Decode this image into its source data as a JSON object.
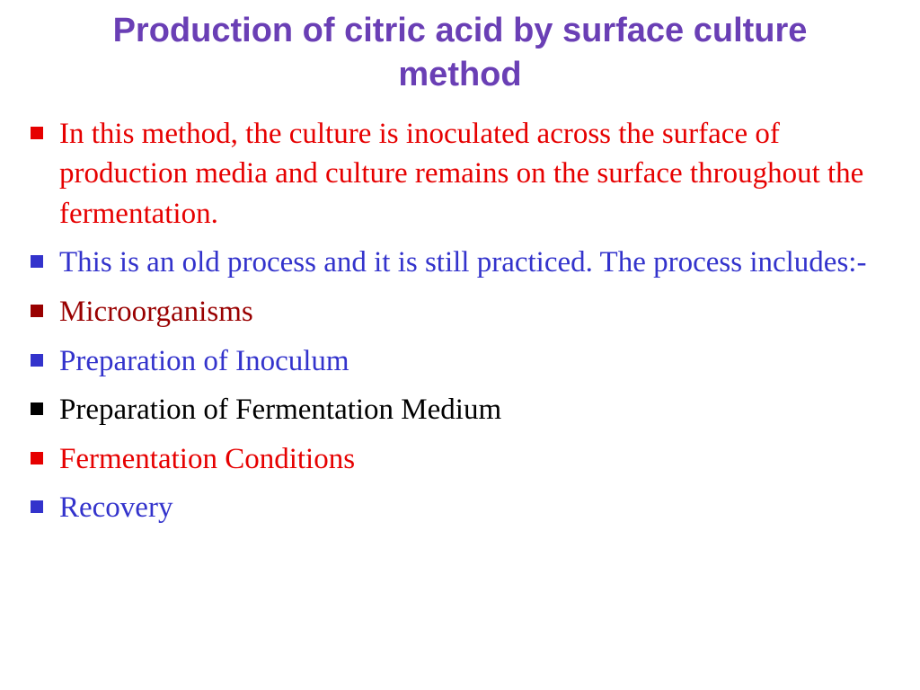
{
  "title": {
    "text": "Production of citric acid by surface culture method",
    "color": "#6a3fb5",
    "fontsize": 38
  },
  "bullets": [
    {
      "text": " In this method, the culture is inoculated across the surface of production media and culture remains on the surface throughout the fermentation.",
      "text_color": "#e60000",
      "bullet_color": "#e60000"
    },
    {
      "text": "This is an old process and it is still practiced. The process includes:-",
      "text_color": "#3333cc",
      "bullet_color": "#3333cc"
    },
    {
      "text": "Microorganisms",
      "text_color": "#990000",
      "bullet_color": "#990000"
    },
    {
      "text": "Preparation of Inoculum",
      "text_color": "#3333cc",
      "bullet_color": "#3333cc"
    },
    {
      "text": "Preparation of Fermentation Medium",
      "text_color": "#000000",
      "bullet_color": "#000000"
    },
    {
      "text": " Fermentation Conditions",
      "text_color": "#e60000",
      "bullet_color": "#e60000"
    },
    {
      "text": " Recovery",
      "text_color": "#3333cc",
      "bullet_color": "#3333cc"
    }
  ],
  "background_color": "#ffffff"
}
